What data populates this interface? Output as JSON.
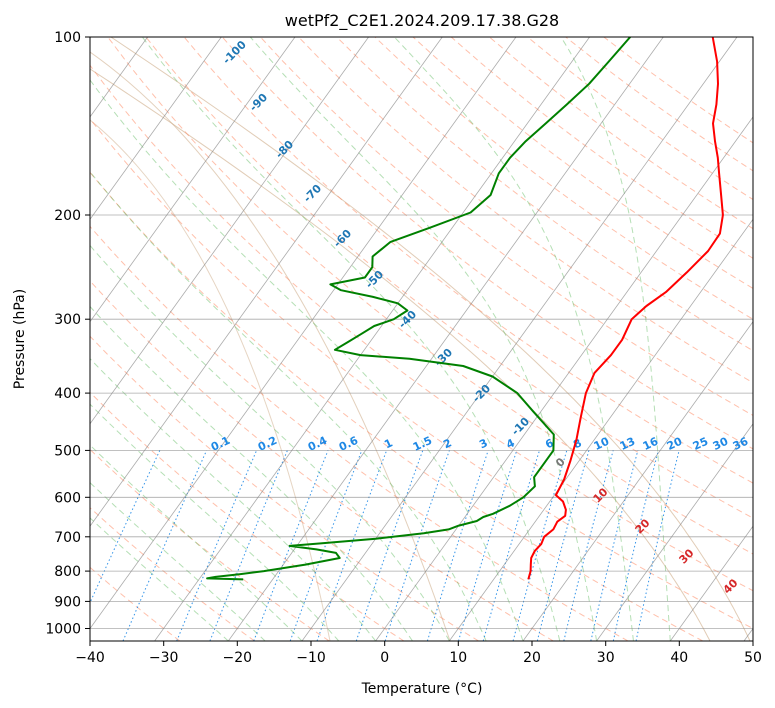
{
  "chart_data": {
    "type": "line",
    "diagram": "skew-T log-P",
    "title": "wetPf2_C2E1.2024.209.17.38.G28",
    "xlabel": "Temperature (°C)",
    "ylabel": "Pressure (hPa)",
    "xlim": [
      -40,
      50
    ],
    "ylim": [
      1050,
      100
    ],
    "y_scale": "log",
    "grid": true,
    "x_ticks": [
      "−40",
      "−30",
      "−20",
      "−10",
      "0",
      "10",
      "20",
      "30",
      "40",
      "50"
    ],
    "y_ticks": [
      "100",
      "200",
      "300",
      "400",
      "500",
      "600",
      "700",
      "800",
      "900",
      "1000"
    ],
    "colors": {
      "temperature": "#ff0000",
      "dewpoint": "#008000",
      "dry_adiabat": "#ff8c66",
      "moist_adiabat": "#5cb85c",
      "mixing_ratio": "#1e88e5",
      "isotherm": "#888888",
      "background_curve": "#c8a27a"
    },
    "series": [
      {
        "role": "temperature",
        "points": [
          {
            "p": 826,
            "t": 14.7
          },
          {
            "p": 800,
            "t": 14.2
          },
          {
            "p": 780,
            "t": 13.6
          },
          {
            "p": 760,
            "t": 13.0
          },
          {
            "p": 740,
            "t": 12.8
          },
          {
            "p": 720,
            "t": 13.0
          },
          {
            "p": 700,
            "t": 12.7
          },
          {
            "p": 680,
            "t": 13.2
          },
          {
            "p": 660,
            "t": 13.0
          },
          {
            "p": 645,
            "t": 13.5
          },
          {
            "p": 630,
            "t": 13.0
          },
          {
            "p": 610,
            "t": 11.8
          },
          {
            "p": 595,
            "t": 10.2
          },
          {
            "p": 560,
            "t": 9.8
          },
          {
            "p": 520,
            "t": 8.8
          },
          {
            "p": 480,
            "t": 7.6
          },
          {
            "p": 440,
            "t": 6.0
          },
          {
            "p": 400,
            "t": 4.3
          },
          {
            "p": 370,
            "t": 3.5
          },
          {
            "p": 345,
            "t": 4.0
          },
          {
            "p": 325,
            "t": 4.0
          },
          {
            "p": 300,
            "t": 3.3
          },
          {
            "p": 285,
            "t": 4.0
          },
          {
            "p": 270,
            "t": 5.3
          },
          {
            "p": 250,
            "t": 6.2
          },
          {
            "p": 230,
            "t": 7.0
          },
          {
            "p": 215,
            "t": 6.9
          },
          {
            "p": 200,
            "t": 5.5
          },
          {
            "p": 185,
            "t": 3.3
          },
          {
            "p": 170,
            "t": 0.9
          },
          {
            "p": 160,
            "t": -0.8
          },
          {
            "p": 150,
            "t": -2.8
          },
          {
            "p": 140,
            "t": -4.8
          },
          {
            "p": 130,
            "t": -6.2
          },
          {
            "p": 120,
            "t": -8.0
          },
          {
            "p": 110,
            "t": -10.3
          },
          {
            "p": 100,
            "t": -13.3
          }
        ]
      },
      {
        "role": "dewpoint",
        "points": [
          {
            "p": 826,
            "t": -24
          },
          {
            "p": 823,
            "t": -29
          },
          {
            "p": 818,
            "t": -28
          },
          {
            "p": 810,
            "t": -25
          },
          {
            "p": 800,
            "t": -22
          },
          {
            "p": 780,
            "t": -17
          },
          {
            "p": 760,
            "t": -13
          },
          {
            "p": 745,
            "t": -14
          },
          {
            "p": 735,
            "t": -17
          },
          {
            "p": 725,
            "t": -21
          },
          {
            "p": 718,
            "t": -17
          },
          {
            "p": 705,
            "t": -10
          },
          {
            "p": 690,
            "t": -4
          },
          {
            "p": 680,
            "t": -1
          },
          {
            "p": 670,
            "t": 0
          },
          {
            "p": 658,
            "t": 2
          },
          {
            "p": 648,
            "t": 2.5
          },
          {
            "p": 640,
            "t": 3.5
          },
          {
            "p": 620,
            "t": 5
          },
          {
            "p": 600,
            "t": 6
          },
          {
            "p": 575,
            "t": 6.5
          },
          {
            "p": 555,
            "t": 5.5
          },
          {
            "p": 530,
            "t": 5.5
          },
          {
            "p": 500,
            "t": 5.5
          },
          {
            "p": 470,
            "t": 4
          },
          {
            "p": 430,
            "t": -1
          },
          {
            "p": 400,
            "t": -5
          },
          {
            "p": 375,
            "t": -10
          },
          {
            "p": 360,
            "t": -15
          },
          {
            "p": 350,
            "t": -23
          },
          {
            "p": 345,
            "t": -30
          },
          {
            "p": 338,
            "t": -34
          },
          {
            "p": 328,
            "t": -33
          },
          {
            "p": 318,
            "t": -32
          },
          {
            "p": 308,
            "t": -31
          },
          {
            "p": 300,
            "t": -29
          },
          {
            "p": 290,
            "t": -28
          },
          {
            "p": 282,
            "t": -30
          },
          {
            "p": 275,
            "t": -34
          },
          {
            "p": 268,
            "t": -39
          },
          {
            "p": 262,
            "t": -41
          },
          {
            "p": 255,
            "t": -37
          },
          {
            "p": 245,
            "t": -37
          },
          {
            "p": 235,
            "t": -38
          },
          {
            "p": 222,
            "t": -37
          },
          {
            "p": 210,
            "t": -33
          },
          {
            "p": 198,
            "t": -29
          },
          {
            "p": 185,
            "t": -28
          },
          {
            "p": 170,
            "t": -29
          },
          {
            "p": 160,
            "t": -29
          },
          {
            "p": 150,
            "t": -28.5
          },
          {
            "p": 140,
            "t": -27.5
          },
          {
            "p": 130,
            "t": -26.5
          },
          {
            "p": 120,
            "t": -25.5
          },
          {
            "p": 110,
            "t": -25
          },
          {
            "p": 100,
            "t": -24.5
          }
        ]
      }
    ],
    "dry_adiabat_labels": [
      "-100",
      "-90",
      "-80",
      "-70",
      "-60",
      "-50",
      "-40",
      "-30",
      "-20",
      "-10",
      "0",
      "10",
      "20",
      "30",
      "40"
    ],
    "mixing_ratio_labels": [
      "0.1",
      "0.2",
      "0.4",
      "0.6",
      "1",
      "1.5",
      "2",
      "3",
      "4",
      "6",
      "8",
      "10",
      "13",
      "16",
      "20",
      "25",
      "30",
      "36"
    ]
  }
}
